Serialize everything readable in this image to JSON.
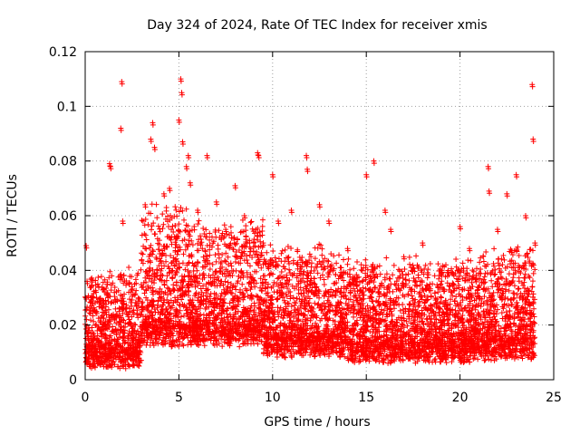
{
  "chart_data": {
    "type": "scatter",
    "title": "Day 324 of 2024, Rate Of TEC Index for receiver xmis",
    "xlabel": "GPS time / hours",
    "ylabel": "ROTI / TECUs",
    "xlim": [
      0,
      25
    ],
    "ylim": [
      0,
      0.12
    ],
    "xticks": [
      "0",
      "5",
      "10",
      "15",
      "20",
      "25"
    ],
    "yticks": [
      "0",
      "0.02",
      "0.04",
      "0.06",
      "0.08",
      "0.1",
      "0.12"
    ],
    "grid": true,
    "marker": "plus",
    "color": "#ff0000",
    "series": [
      {
        "x": [
          0.05,
          0.1,
          0.3,
          0.6,
          1.0,
          1.3,
          1.35,
          1.9,
          1.95,
          2.0,
          2.5,
          3.2,
          3.5,
          3.6,
          3.7,
          4.2,
          4.5,
          5.0,
          5.1,
          5.15,
          5.2,
          5.4,
          5.5,
          5.6,
          6.0,
          6.5,
          7.0,
          7.5,
          8.0,
          8.5,
          9.2,
          9.25,
          9.5,
          10.0,
          10.3,
          11.0,
          11.8,
          11.85,
          12.5,
          13.0,
          14.0,
          15.0,
          15.4,
          16.0,
          16.3,
          17.0,
          18.0,
          19.0,
          20.0,
          20.5,
          21.5,
          21.55,
          22.0,
          22.5,
          23.0,
          23.5,
          23.85,
          23.9,
          24.0
        ],
        "y": [
          0.049,
          0.036,
          0.03,
          0.025,
          0.033,
          0.079,
          0.078,
          0.092,
          0.109,
          0.058,
          0.034,
          0.064,
          0.088,
          0.094,
          0.085,
          0.068,
          0.07,
          0.095,
          0.11,
          0.105,
          0.087,
          0.078,
          0.082,
          0.072,
          0.062,
          0.082,
          0.065,
          0.055,
          0.071,
          0.06,
          0.083,
          0.082,
          0.05,
          0.075,
          0.058,
          0.062,
          0.082,
          0.077,
          0.064,
          0.058,
          0.048,
          0.075,
          0.08,
          0.062,
          0.055,
          0.045,
          0.05,
          0.04,
          0.056,
          0.048,
          0.078,
          0.069,
          0.055,
          0.068,
          0.075,
          0.06,
          0.108,
          0.088,
          0.05
        ]
      }
    ],
    "density_bands": [
      {
        "from": 0,
        "to": 1.8,
        "base": 0.012,
        "spread": 0.008
      },
      {
        "from": 1.8,
        "to": 3.0,
        "base": 0.012,
        "spread": 0.01
      },
      {
        "from": 3.0,
        "to": 5.5,
        "base": 0.02,
        "spread": 0.025
      },
      {
        "from": 5.5,
        "to": 9.5,
        "base": 0.02,
        "spread": 0.02
      },
      {
        "from": 9.5,
        "to": 14.0,
        "base": 0.016,
        "spread": 0.014
      },
      {
        "from": 14.0,
        "to": 21.0,
        "base": 0.014,
        "spread": 0.012
      },
      {
        "from": 21.0,
        "to": 24.0,
        "base": 0.015,
        "spread": 0.016
      }
    ]
  }
}
